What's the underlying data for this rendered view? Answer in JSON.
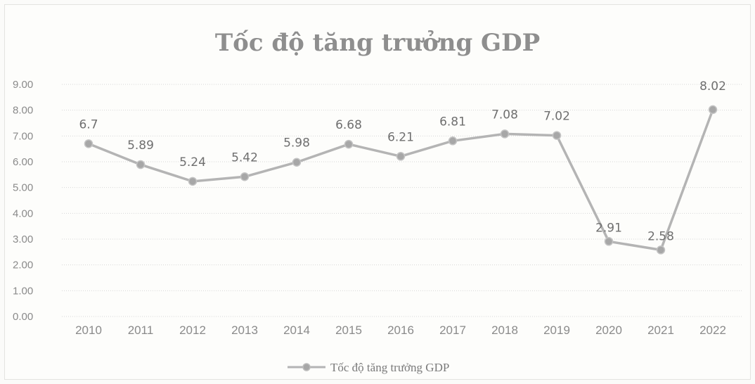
{
  "chart_data": {
    "type": "line",
    "title": "Tốc độ tăng trưởng GDP",
    "xlabel": "",
    "ylabel": "",
    "categories": [
      "2010",
      "2011",
      "2012",
      "2013",
      "2014",
      "2015",
      "2016",
      "2017",
      "2018",
      "2019",
      "2020",
      "2021",
      "2022"
    ],
    "series": [
      {
        "name": "Tốc độ tăng trưởng GDP",
        "values": [
          6.7,
          5.89,
          5.24,
          5.42,
          5.98,
          6.68,
          6.21,
          6.81,
          7.08,
          7.02,
          2.91,
          2.58,
          8.02
        ],
        "labels": [
          "6.7",
          "5.89",
          "5.24",
          "5.42",
          "5.98",
          "6.68",
          "6.21",
          "6.81",
          "7.08",
          "7.02",
          "2.91",
          "2.58",
          "8.02"
        ]
      }
    ],
    "ylim": [
      0,
      9
    ],
    "yticks": [
      "0.00",
      "1.00",
      "2.00",
      "3.00",
      "4.00",
      "5.00",
      "6.00",
      "7.00",
      "8.00",
      "9.00"
    ],
    "grid": true,
    "legend_position": "bottom",
    "colors": {
      "line": "#b4b4b4",
      "marker": "#a7a7a7",
      "grid": "#d7d7d7"
    }
  }
}
